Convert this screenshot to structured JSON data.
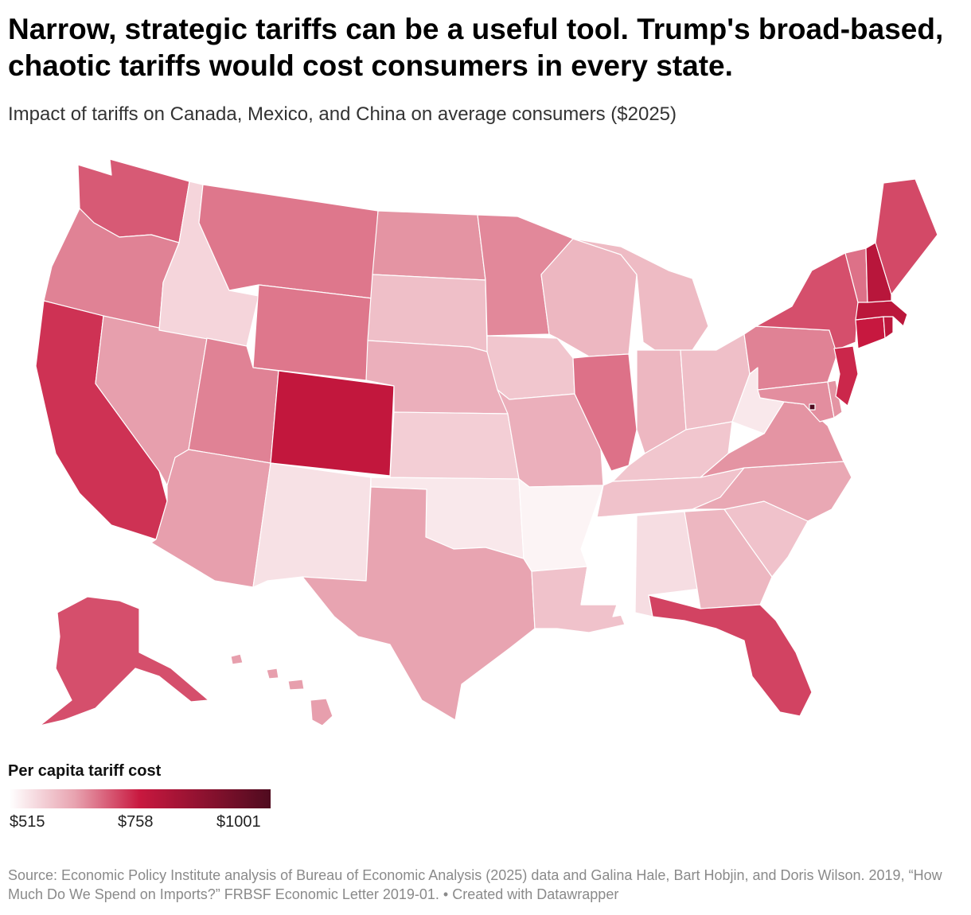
{
  "title": "Narrow, strategic tariffs can be a useful tool. Trump's broad-based, chaotic tariffs would cost consumers in every state.",
  "subtitle": "Impact of tariffs on Canada, Mexico, and China on average consumers ($2025)",
  "legend": {
    "title": "Per capita tariff cost",
    "min_label": "$515",
    "mid_label": "$758",
    "max_label": "$1001",
    "min_value": 515,
    "mid_value": 758,
    "max_value": 1001,
    "gradient_colors": [
      "#ffffff",
      "#e8a3b0",
      "#c8183f",
      "#4f0b1f"
    ]
  },
  "map_data": {
    "type": "choropleth",
    "region": "United States",
    "states": {
      "WA": 700,
      "OR": 665,
      "CA": 735,
      "NV": 640,
      "ID": 570,
      "MT": 675,
      "WY": 675,
      "UT": 665,
      "AZ": 640,
      "CO": 770,
      "NM": 555,
      "ND": 650,
      "SD": 600,
      "NE": 620,
      "KS": 580,
      "OK": 545,
      "TX": 635,
      "MN": 660,
      "IA": 590,
      "MO": 620,
      "AR": 530,
      "LA": 595,
      "WI": 610,
      "IL": 680,
      "MI": 605,
      "IN": 610,
      "OH": 600,
      "KY": 590,
      "TN": 595,
      "MS": 515,
      "AL": 560,
      "GA": 610,
      "FL": 720,
      "SC": 595,
      "NC": 630,
      "VA": 650,
      "WV": 545,
      "PA": 665,
      "NY": 710,
      "VT": 680,
      "NH": 790,
      "ME": 715,
      "MA": 785,
      "CT": 760,
      "RI": 780,
      "NJ": 745,
      "DE": 650,
      "MD": 655,
      "DC": 1001,
      "AK": 710,
      "HI": 640
    }
  },
  "source": "Source: Economic Policy Institute analysis of Bureau of Economic Analysis (2025) data and Galina Hale, Bart Hobjin, and Doris Wilson. 2019, “How Much Do We Spend on Imports?” FRBSF Economic Letter 2019-01. • Created with Datawrapper"
}
